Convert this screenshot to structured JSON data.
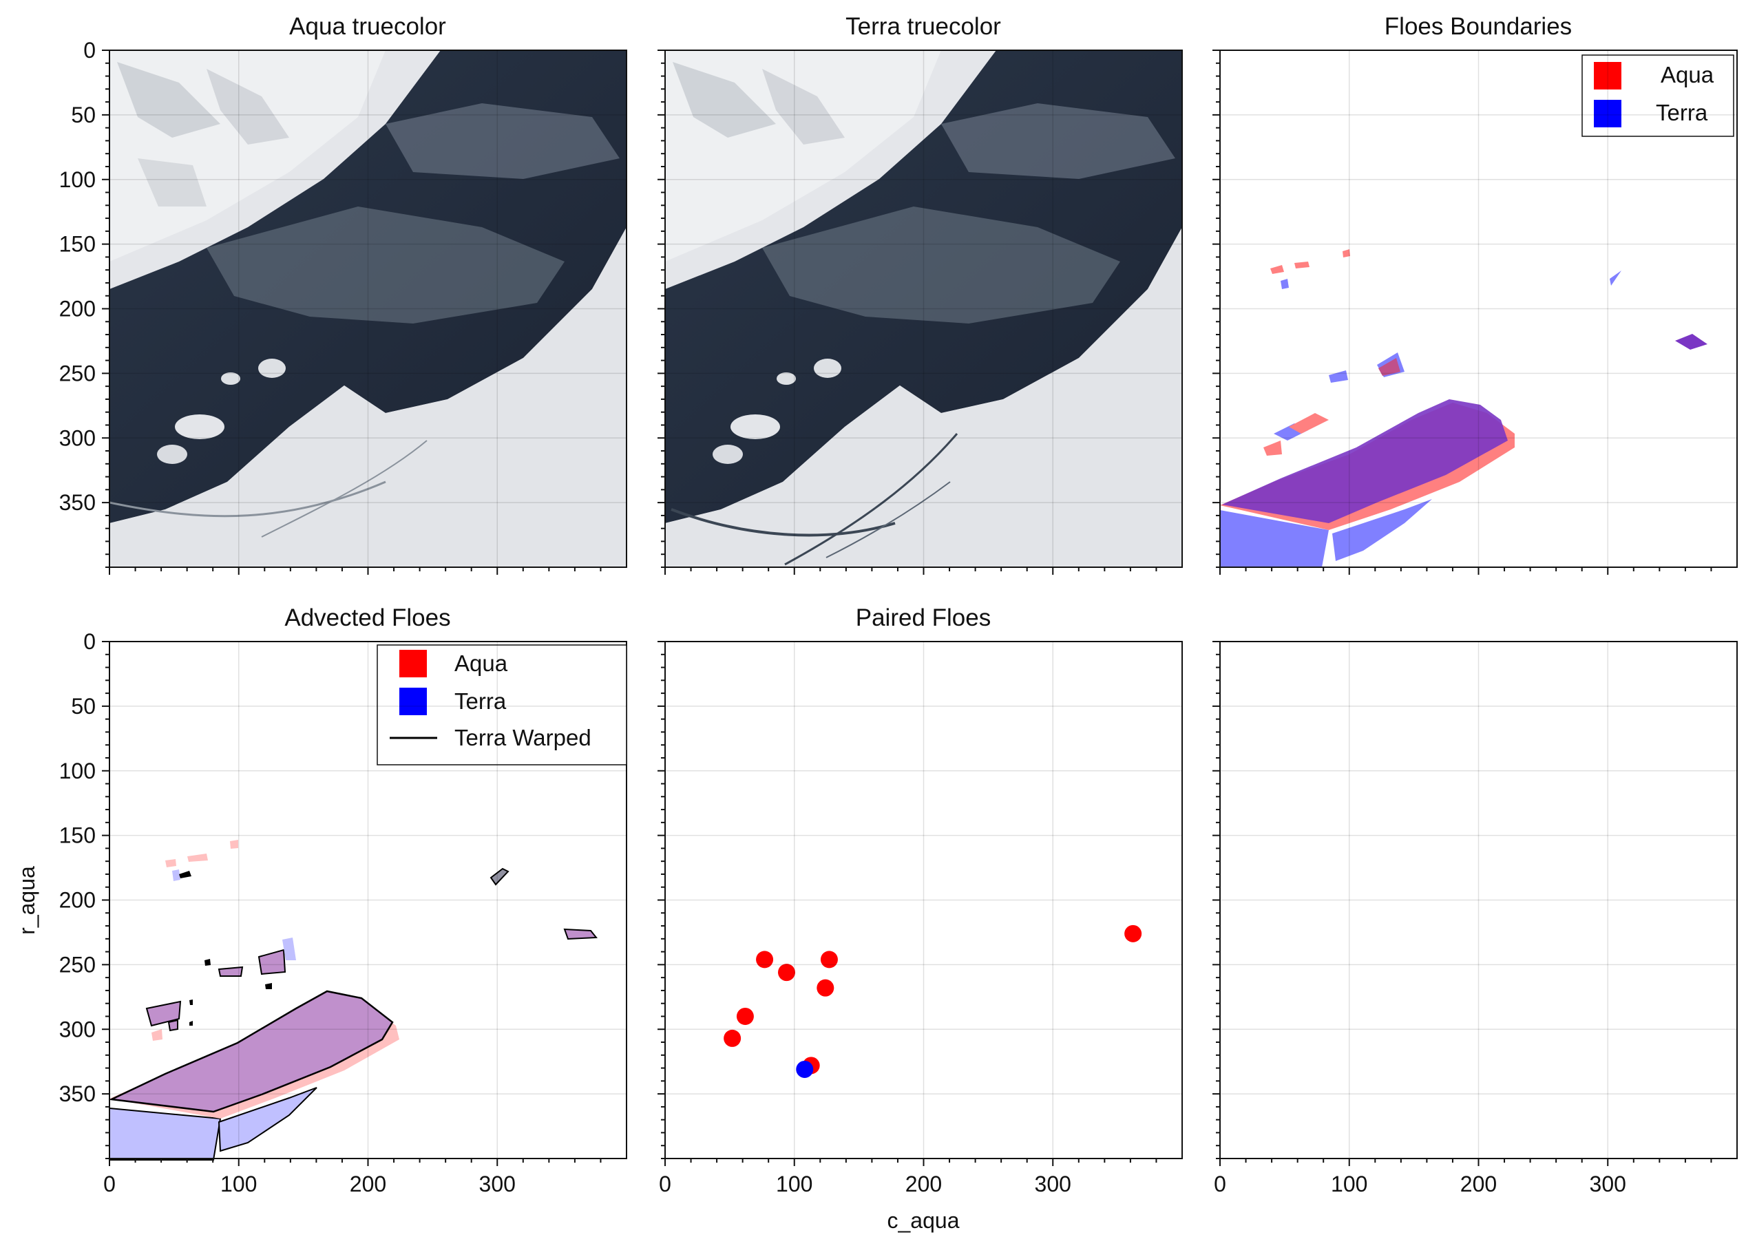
{
  "figure": {
    "xlabel": "c_aqua",
    "ylabel": "r_aqua"
  },
  "panels": [
    {
      "id": "aqua",
      "title": "Aqua truecolor"
    },
    {
      "id": "terra",
      "title": "Terra truecolor"
    },
    {
      "id": "bounds",
      "title": "Floes Boundaries"
    },
    {
      "id": "advected",
      "title": "Advected Floes"
    },
    {
      "id": "paired",
      "title": "Paired Floes"
    },
    {
      "id": "empty",
      "title": ""
    }
  ],
  "legends": {
    "bounds": [
      {
        "label": "Aqua",
        "color": "#ff0000",
        "kind": "patch"
      },
      {
        "label": "Terra",
        "color": "#0000ff",
        "kind": "patch"
      }
    ],
    "advected": [
      {
        "label": "Aqua",
        "color": "#ff0000",
        "kind": "patch"
      },
      {
        "label": "Terra",
        "color": "#0000ff",
        "kind": "patch"
      },
      {
        "label": "Terra Warped",
        "color": "#000000",
        "kind": "line"
      }
    ]
  },
  "axes": {
    "x_ticks": [
      0,
      100,
      200,
      300
    ],
    "y_ticks": [
      0,
      50,
      100,
      150,
      200,
      250,
      300,
      350
    ],
    "xlim": [
      0,
      400
    ],
    "ylim": [
      400,
      0
    ]
  },
  "chart_data": [
    {
      "type": "image",
      "title": "Aqua truecolor",
      "content": "satellite truecolor imagery of sea ice near coast"
    },
    {
      "type": "image",
      "title": "Terra truecolor",
      "content": "satellite truecolor imagery of sea ice near coast"
    },
    {
      "type": "area",
      "title": "Floes Boundaries",
      "series": [
        {
          "name": "Aqua",
          "color": "#ff0000"
        },
        {
          "name": "Terra",
          "color": "#0000ff"
        }
      ],
      "xlim": [
        0,
        400
      ],
      "ylim": [
        400,
        0
      ]
    },
    {
      "type": "area",
      "title": "Advected Floes",
      "series": [
        {
          "name": "Aqua",
          "color": "#ff0000"
        },
        {
          "name": "Terra",
          "color": "#0000ff"
        },
        {
          "name": "Terra Warped",
          "color": "#000000"
        }
      ],
      "xlim": [
        0,
        400
      ],
      "ylim": [
        400,
        0
      ]
    },
    {
      "type": "scatter",
      "title": "Paired Floes",
      "xlabel": "c_aqua",
      "xlim": [
        0,
        400
      ],
      "ylim": [
        400,
        0
      ],
      "series": [
        {
          "color": "#ff0000",
          "x": [
            52,
            62,
            77,
            94,
            124,
            127,
            113,
            362
          ],
          "y": [
            307,
            290,
            246,
            256,
            268,
            246,
            328,
            226
          ]
        },
        {
          "color": "#0000ff",
          "x": [
            108
          ],
          "y": [
            331
          ]
        }
      ]
    },
    {
      "type": "scatter",
      "title": "",
      "xlim": [
        0,
        400
      ],
      "ylim": [
        400,
        0
      ],
      "series": []
    }
  ]
}
